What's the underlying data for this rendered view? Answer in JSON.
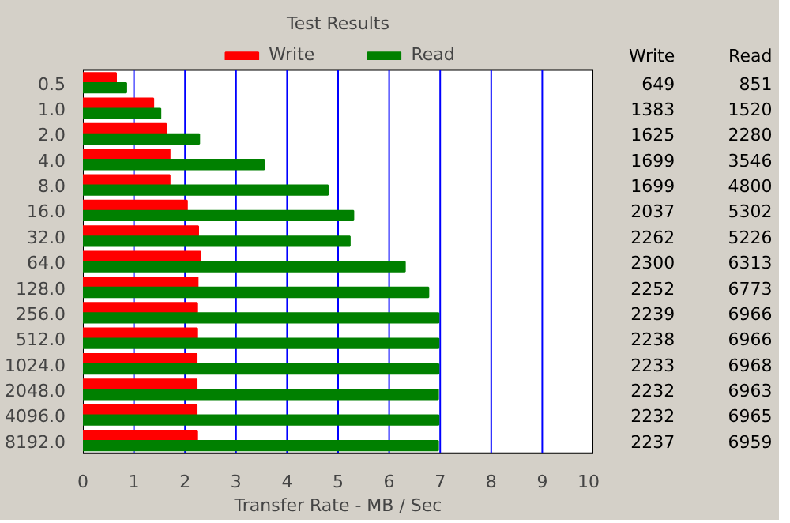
{
  "chart_data": [
    {
      "type": "bar",
      "orientation": "horizontal",
      "title": "Test Results",
      "xlabel": "Transfer Rate - MB / Sec",
      "categories": [
        "0.5",
        "1.0",
        "2.0",
        "4.0",
        "8.0",
        "16.0",
        "32.0",
        "64.0",
        "128.0",
        "256.0",
        "512.0",
        "1024.0",
        "2048.0",
        "4096.0",
        "8192.0"
      ],
      "series": [
        {
          "name": "Write",
          "color": "#ff0000",
          "values": [
            0.65,
            1.38,
            1.63,
            1.7,
            1.7,
            2.04,
            2.26,
            2.3,
            2.25,
            2.24,
            2.24,
            2.23,
            2.23,
            2.23,
            2.24
          ]
        },
        {
          "name": "Read",
          "color": "#008000",
          "values": [
            0.85,
            1.52,
            2.28,
            3.55,
            4.8,
            5.3,
            5.23,
            6.31,
            6.77,
            6.97,
            6.97,
            6.97,
            6.96,
            6.97,
            6.96
          ]
        }
      ],
      "xlim": [
        0,
        10
      ],
      "xticks": [
        0,
        1,
        2,
        3,
        4,
        5,
        6,
        7,
        8,
        9,
        10
      ],
      "grid": "x",
      "legend": "top"
    },
    {
      "type": "other",
      "annotations": [
        "Write",
        "Read",
        "649",
        "851",
        "1383",
        "1520",
        "1625",
        "2280",
        "1699",
        "3546",
        "1699",
        "4800",
        "2037",
        "5302",
        "2262",
        "5226",
        "2300",
        "6313",
        "2252",
        "6773",
        "2239",
        "6966",
        "2238",
        "6966",
        "2233",
        "6968",
        "2232",
        "6963",
        "2232",
        "6965",
        "2237",
        "6959"
      ]
    }
  ]
}
